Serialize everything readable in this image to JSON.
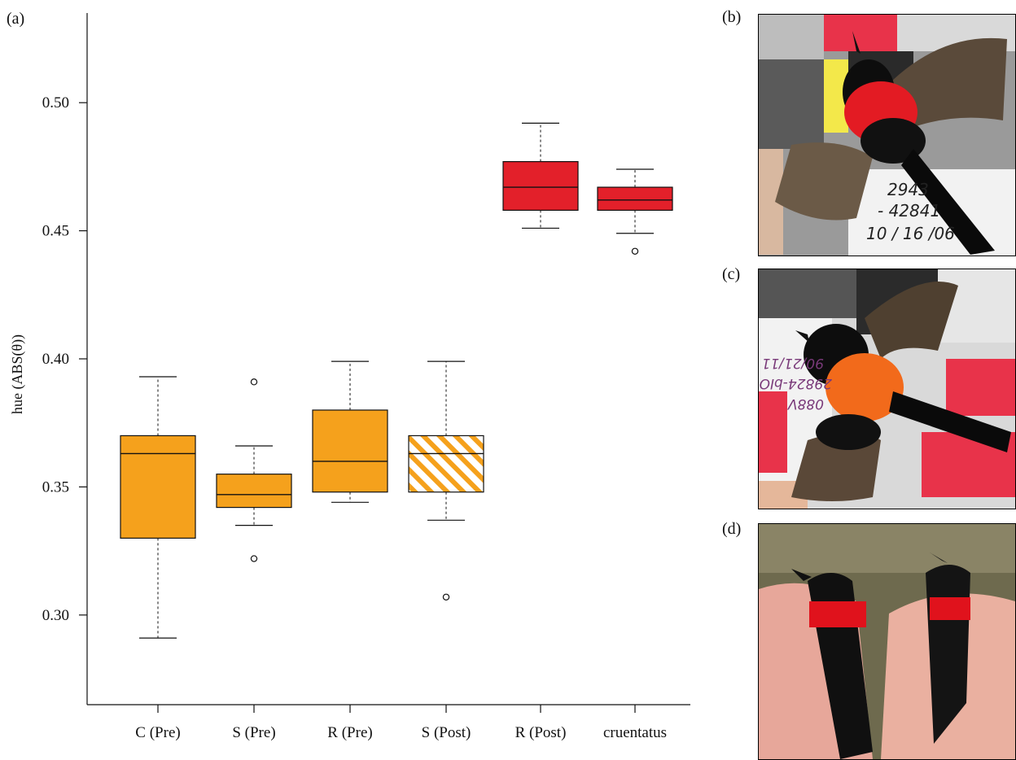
{
  "figure": {
    "panel_labels": {
      "a": "(a)",
      "b": "(b)",
      "c": "(c)",
      "d": "(d)"
    }
  },
  "photos": {
    "b": {
      "label_lines": [
        "2943",
        "- 42841",
        "10 / 16 /06"
      ]
    },
    "c": {
      "label_lines": [
        "90/21/11",
        "29824-bIO",
        "088V"
      ]
    },
    "d": {}
  },
  "colors": {
    "orange": "#F5A11C",
    "red": "#E3202A",
    "stroke": "#111111"
  },
  "chart_data": {
    "type": "box",
    "title": "",
    "xlabel": "",
    "ylabel": "hue (ABS(θ))",
    "ylim": [
      0.265,
      0.535
    ],
    "yticks": [
      0.3,
      0.35,
      0.4,
      0.45,
      0.5
    ],
    "ytick_labels": [
      "0.30",
      "0.35",
      "0.40",
      "0.45",
      "0.50"
    ],
    "categories": [
      "C (Pre)",
      "S (Pre)",
      "R (Pre)",
      "S (Post)",
      "R (Post)",
      "cruentatus"
    ],
    "boxes": [
      {
        "category": "C (Pre)",
        "whisker_low": 0.291,
        "q1": 0.33,
        "median": 0.363,
        "q3": 0.37,
        "whisker_high": 0.393,
        "outliers": [],
        "fill": "orange",
        "pattern": "solid"
      },
      {
        "category": "S (Pre)",
        "whisker_low": 0.335,
        "q1": 0.342,
        "median": 0.347,
        "q3": 0.355,
        "whisker_high": 0.366,
        "outliers": [
          0.391,
          0.322
        ],
        "fill": "orange",
        "pattern": "solid"
      },
      {
        "category": "R (Pre)",
        "whisker_low": 0.344,
        "q1": 0.348,
        "median": 0.36,
        "q3": 0.38,
        "whisker_high": 0.399,
        "outliers": [],
        "fill": "orange",
        "pattern": "solid"
      },
      {
        "category": "S (Post)",
        "whisker_low": 0.337,
        "q1": 0.348,
        "median": 0.363,
        "q3": 0.37,
        "whisker_high": 0.399,
        "outliers": [
          0.307
        ],
        "fill": "orange",
        "pattern": "hatched"
      },
      {
        "category": "R (Post)",
        "whisker_low": 0.451,
        "q1": 0.458,
        "median": 0.467,
        "q3": 0.477,
        "whisker_high": 0.492,
        "outliers": [],
        "fill": "red",
        "pattern": "solid"
      },
      {
        "category": "cruentatus",
        "whisker_low": 0.449,
        "q1": 0.458,
        "median": 0.462,
        "q3": 0.467,
        "whisker_high": 0.474,
        "outliers": [
          0.442
        ],
        "fill": "red",
        "pattern": "solid"
      }
    ],
    "grid": false,
    "legend": "none"
  }
}
